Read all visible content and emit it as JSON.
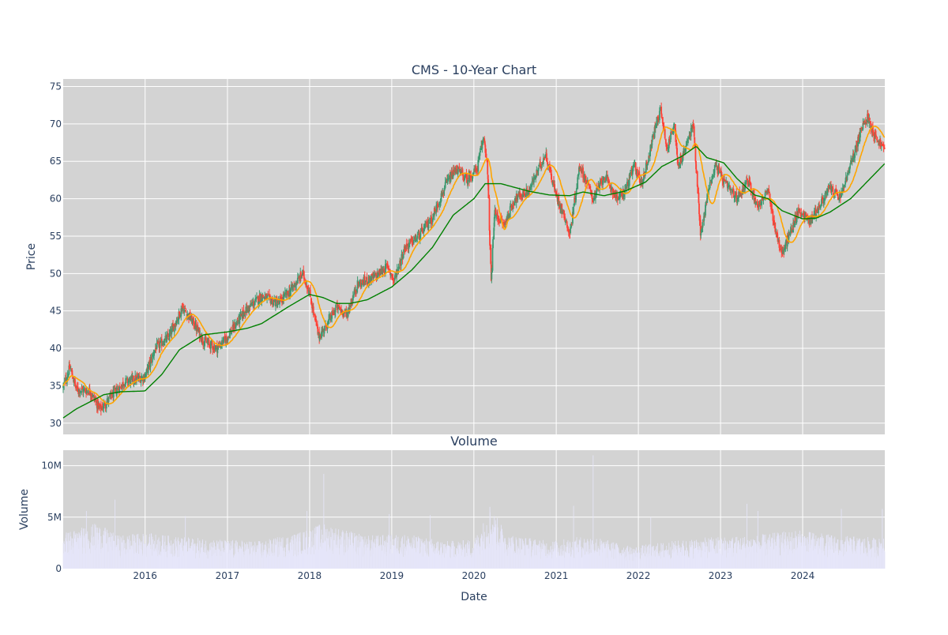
{
  "chart_data": [
    {
      "type": "candlestick",
      "title": "CMS - 10-Year Chart",
      "ylabel": "Price",
      "ylim": [
        28.5,
        76
      ],
      "yticks": [
        30,
        35,
        40,
        45,
        50,
        55,
        60,
        65,
        70,
        75
      ],
      "grid": true,
      "background": "#d3d3d3",
      "colors": {
        "up": "#3d9970",
        "down": "#ff4136",
        "ma_short": "#ffa500",
        "ma_long": "#008000"
      },
      "xlim": [
        "2015-01-02",
        "2024-12-31"
      ],
      "price_keypoints": [
        [
          "2015-01-02",
          34.8
        ],
        [
          "2015-02-01",
          37.5
        ],
        [
          "2015-03-01",
          34.5
        ],
        [
          "2015-05-01",
          34.3
        ],
        [
          "2015-06-15",
          31.8
        ],
        [
          "2015-08-01",
          33.5
        ],
        [
          "2015-10-01",
          35.5
        ],
        [
          "2015-12-31",
          36.2
        ],
        [
          "2016-02-15",
          40.0
        ],
        [
          "2016-04-15",
          41.5
        ],
        [
          "2016-06-15",
          45.5
        ],
        [
          "2016-08-01",
          43.5
        ],
        [
          "2016-09-15",
          41.0
        ],
        [
          "2016-11-15",
          40.0
        ],
        [
          "2016-12-31",
          41.5
        ],
        [
          "2017-03-15",
          44.8
        ],
        [
          "2017-06-01",
          47.0
        ],
        [
          "2017-08-15",
          46.0
        ],
        [
          "2017-10-15",
          48.0
        ],
        [
          "2017-12-01",
          50.0
        ],
        [
          "2017-12-31",
          47.5
        ],
        [
          "2018-02-10",
          41.5
        ],
        [
          "2018-03-15",
          43.0
        ],
        [
          "2018-05-01",
          45.5
        ],
        [
          "2018-06-15",
          44.5
        ],
        [
          "2018-08-01",
          48.5
        ],
        [
          "2018-10-15",
          49.5
        ],
        [
          "2018-12-15",
          51.0
        ],
        [
          "2019-01-10",
          49.0
        ],
        [
          "2019-03-01",
          53.5
        ],
        [
          "2019-05-01",
          55.0
        ],
        [
          "2019-07-01",
          57.5
        ],
        [
          "2019-09-01",
          62.0
        ],
        [
          "2019-10-15",
          64.0
        ],
        [
          "2019-12-01",
          62.5
        ],
        [
          "2020-01-15",
          64.0
        ],
        [
          "2020-02-15",
          68.5
        ],
        [
          "2020-03-01",
          64.0
        ],
        [
          "2020-03-18",
          49.0
        ],
        [
          "2020-04-01",
          58.0
        ],
        [
          "2020-05-15",
          56.5
        ],
        [
          "2020-07-01",
          60.0
        ],
        [
          "2020-09-01",
          61.0
        ],
        [
          "2020-10-15",
          64.0
        ],
        [
          "2020-11-15",
          66.0
        ],
        [
          "2020-12-31",
          60.5
        ],
        [
          "2021-02-15",
          57.0
        ],
        [
          "2021-03-01",
          55.0
        ],
        [
          "2021-04-15",
          64.5
        ],
        [
          "2021-06-15",
          60.0
        ],
        [
          "2021-08-01",
          63.0
        ],
        [
          "2021-10-01",
          60.0
        ],
        [
          "2021-11-01",
          61.0
        ],
        [
          "2021-12-15",
          64.5
        ],
        [
          "2022-01-15",
          62.0
        ],
        [
          "2022-02-15",
          65.5
        ],
        [
          "2022-03-20",
          70.0
        ],
        [
          "2022-04-10",
          72.0
        ],
        [
          "2022-05-10",
          66.5
        ],
        [
          "2022-06-10",
          70.5
        ],
        [
          "2022-06-25",
          64.0
        ],
        [
          "2022-08-01",
          67.0
        ],
        [
          "2022-09-01",
          70.0
        ],
        [
          "2022-09-20",
          62.0
        ],
        [
          "2022-10-05",
          55.0
        ],
        [
          "2022-11-10",
          61.5
        ],
        [
          "2022-12-10",
          64.5
        ],
        [
          "2023-01-20",
          62.0
        ],
        [
          "2023-03-15",
          60.0
        ],
        [
          "2023-05-01",
          62.5
        ],
        [
          "2023-06-15",
          59.0
        ],
        [
          "2023-07-31",
          61.0
        ],
        [
          "2023-09-01",
          56.0
        ],
        [
          "2023-10-01",
          52.5
        ],
        [
          "2023-11-01",
          55.0
        ],
        [
          "2023-12-15",
          58.5
        ],
        [
          "2024-02-01",
          57.0
        ],
        [
          "2024-03-15",
          59.0
        ],
        [
          "2024-05-01",
          61.5
        ],
        [
          "2024-06-15",
          60.0
        ],
        [
          "2024-08-01",
          64.5
        ],
        [
          "2024-09-15",
          69.0
        ],
        [
          "2024-10-15",
          71.0
        ],
        [
          "2024-11-15",
          68.5
        ],
        [
          "2024-12-31",
          66.5
        ]
      ],
      "moving_average_long": [
        [
          "2015-01-02",
          30.7
        ],
        [
          "2015-03-01",
          31.9
        ],
        [
          "2015-07-01",
          33.8
        ],
        [
          "2015-09-15",
          34.2
        ],
        [
          "2015-12-31",
          34.3
        ],
        [
          "2016-03-15",
          36.5
        ],
        [
          "2016-06-01",
          39.8
        ],
        [
          "2016-09-15",
          41.8
        ],
        [
          "2017-01-01",
          42.2
        ],
        [
          "2017-04-01",
          42.7
        ],
        [
          "2017-06-01",
          43.3
        ],
        [
          "2017-10-01",
          45.6
        ],
        [
          "2017-12-31",
          47.2
        ],
        [
          "2018-03-01",
          46.8
        ],
        [
          "2018-05-01",
          46.0
        ],
        [
          "2018-07-01",
          46.0
        ],
        [
          "2018-09-15",
          46.5
        ],
        [
          "2019-01-01",
          48.2
        ],
        [
          "2019-04-01",
          50.5
        ],
        [
          "2019-07-01",
          53.5
        ],
        [
          "2019-10-01",
          57.8
        ],
        [
          "2020-01-01",
          60.0
        ],
        [
          "2020-02-20",
          62.0
        ],
        [
          "2020-05-01",
          62.0
        ],
        [
          "2020-09-01",
          61.0
        ],
        [
          "2020-12-01",
          60.5
        ],
        [
          "2021-03-01",
          60.4
        ],
        [
          "2021-05-01",
          60.9
        ],
        [
          "2021-08-01",
          60.4
        ],
        [
          "2021-11-01",
          61.0
        ],
        [
          "2022-02-01",
          62.2
        ],
        [
          "2022-04-15",
          64.3
        ],
        [
          "2022-07-15",
          65.7
        ],
        [
          "2022-09-15",
          67.0
        ],
        [
          "2022-11-01",
          65.5
        ],
        [
          "2023-01-15",
          64.8
        ],
        [
          "2023-03-15",
          62.7
        ],
        [
          "2023-06-01",
          60.5
        ],
        [
          "2023-08-01",
          60.0
        ],
        [
          "2023-10-01",
          58.4
        ],
        [
          "2024-01-01",
          57.3
        ],
        [
          "2024-03-01",
          57.4
        ],
        [
          "2024-05-01",
          58.2
        ],
        [
          "2024-08-01",
          60.0
        ],
        [
          "2024-12-31",
          64.7
        ]
      ]
    },
    {
      "type": "bar",
      "title": "Volume",
      "xlabel": "Date",
      "ylabel": "Volume",
      "ylim": [
        0,
        11500000
      ],
      "yticks": [
        0,
        5000000,
        10000000
      ],
      "ytick_labels": [
        "0",
        "5M",
        "10M"
      ],
      "x_tick_labels": [
        "2016",
        "2017",
        "2018",
        "2019",
        "2020",
        "2021",
        "2022",
        "2023",
        "2024"
      ],
      "grid": true,
      "background": "#d3d3d3",
      "bar_color": "#e6e6fa",
      "volume_keypoints": [
        [
          "2015-01-02",
          2600000
        ],
        [
          "2015-06-01",
          3300000
        ],
        [
          "2015-09-01",
          2400000
        ],
        [
          "2016-01-01",
          2600000
        ],
        [
          "2016-06-01",
          2300000
        ],
        [
          "2016-12-01",
          2100000
        ],
        [
          "2017-06-01",
          2000000
        ],
        [
          "2017-12-01",
          2700000
        ],
        [
          "2018-03-01",
          3300000
        ],
        [
          "2018-09-01",
          2400000
        ],
        [
          "2019-03-01",
          2500000
        ],
        [
          "2019-09-01",
          2000000
        ],
        [
          "2020-01-01",
          2100000
        ],
        [
          "2020-03-15",
          4400000
        ],
        [
          "2020-06-01",
          2500000
        ],
        [
          "2020-12-01",
          2000000
        ],
        [
          "2021-06-01",
          2400000
        ],
        [
          "2021-12-01",
          1600000
        ],
        [
          "2022-06-01",
          2000000
        ],
        [
          "2022-12-01",
          2300000
        ],
        [
          "2023-06-01",
          2400000
        ],
        [
          "2023-12-01",
          2800000
        ],
        [
          "2024-06-01",
          2400000
        ],
        [
          "2024-12-31",
          2200000
        ]
      ],
      "volume_spikes": [
        [
          "2015-04-15",
          5600000
        ],
        [
          "2015-08-20",
          6700000
        ],
        [
          "2016-06-28",
          5100000
        ],
        [
          "2017-12-20",
          5600000
        ],
        [
          "2018-03-05",
          9200000
        ],
        [
          "2018-12-21",
          5300000
        ],
        [
          "2019-06-21",
          5200000
        ],
        [
          "2020-03-12",
          6000000
        ],
        [
          "2021-03-19",
          6100000
        ],
        [
          "2021-06-14",
          11000000
        ],
        [
          "2022-02-25",
          5000000
        ],
        [
          "2023-04-28",
          6300000
        ],
        [
          "2023-06-16",
          5600000
        ],
        [
          "2024-06-21",
          5800000
        ],
        [
          "2024-12-20",
          5800000
        ]
      ]
    }
  ]
}
